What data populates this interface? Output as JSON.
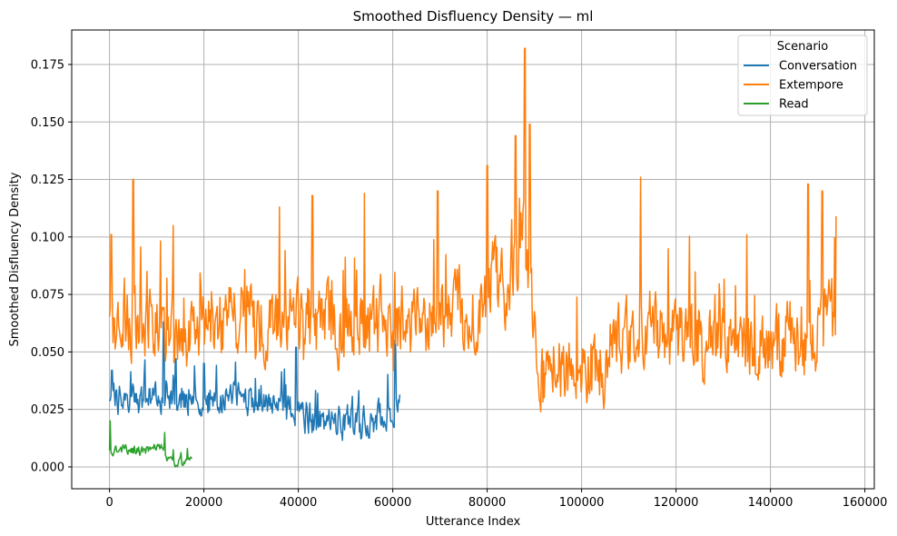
{
  "chart_data": {
    "type": "line",
    "title": "Smoothed Disfluency Density — ml",
    "xlabel": "Utterance Index",
    "ylabel": "Smoothed Disfluency Density",
    "xlim": [
      -8000,
      162000
    ],
    "ylim": [
      -0.0095,
      0.19
    ],
    "xticks": [
      0,
      20000,
      40000,
      60000,
      80000,
      100000,
      120000,
      140000,
      160000
    ],
    "xtick_labels": [
      "0",
      "20000",
      "40000",
      "60000",
      "80000",
      "100000",
      "120000",
      "140000",
      "160000"
    ],
    "yticks": [
      0.0,
      0.025,
      0.05,
      0.075,
      0.1,
      0.125,
      0.15,
      0.175
    ],
    "ytick_labels": [
      "0.000",
      "0.025",
      "0.050",
      "0.075",
      "0.100",
      "0.125",
      "0.150",
      "0.175"
    ],
    "grid": true,
    "legend": {
      "title": "Scenario",
      "position": "top-right"
    },
    "series": [
      {
        "name": "Conversation",
        "color": "#1f77b4",
        "x_range": [
          0,
          61500
        ],
        "anchors": [
          [
            0,
            0.03
          ],
          [
            2000,
            0.03
          ],
          [
            5000,
            0.029
          ],
          [
            10000,
            0.029
          ],
          [
            12000,
            0.033
          ],
          [
            15000,
            0.03
          ],
          [
            20000,
            0.028
          ],
          [
            25000,
            0.031
          ],
          [
            30000,
            0.029
          ],
          [
            33000,
            0.031
          ],
          [
            37000,
            0.027
          ],
          [
            40000,
            0.022
          ],
          [
            45000,
            0.02
          ],
          [
            50000,
            0.019
          ],
          [
            55000,
            0.021
          ],
          [
            58000,
            0.022
          ],
          [
            61500,
            0.027
          ]
        ],
        "amplitude": 0.007,
        "spikes": [
          [
            500,
            0.042
          ],
          [
            11500,
            0.063
          ],
          [
            14000,
            0.047
          ],
          [
            20000,
            0.045
          ],
          [
            39500,
            0.052
          ],
          [
            60500,
            0.055
          ]
        ],
        "min": 0.01,
        "max": 0.063
      },
      {
        "name": "Extempore",
        "color": "#ff7f0e",
        "x_range": [
          0,
          154000
        ],
        "anchors": [
          [
            0,
            0.065
          ],
          [
            5000,
            0.065
          ],
          [
            10000,
            0.062
          ],
          [
            15000,
            0.06
          ],
          [
            20000,
            0.062
          ],
          [
            25000,
            0.064
          ],
          [
            30000,
            0.063
          ],
          [
            35000,
            0.062
          ],
          [
            40000,
            0.063
          ],
          [
            45000,
            0.062
          ],
          [
            50000,
            0.063
          ],
          [
            55000,
            0.062
          ],
          [
            60000,
            0.062
          ],
          [
            65000,
            0.064
          ],
          [
            70000,
            0.066
          ],
          [
            75000,
            0.066
          ],
          [
            79000,
            0.07
          ],
          [
            81000,
            0.083
          ],
          [
            84000,
            0.078
          ],
          [
            86000,
            0.09
          ],
          [
            88000,
            0.1
          ],
          [
            89000,
            0.085
          ],
          [
            90000,
            0.055
          ],
          [
            91000,
            0.04
          ],
          [
            95000,
            0.045
          ],
          [
            100000,
            0.04
          ],
          [
            105000,
            0.045
          ],
          [
            110000,
            0.055
          ],
          [
            115000,
            0.06
          ],
          [
            120000,
            0.058
          ],
          [
            125000,
            0.055
          ],
          [
            130000,
            0.05
          ],
          [
            135000,
            0.055
          ],
          [
            140000,
            0.05
          ],
          [
            145000,
            0.057
          ],
          [
            150000,
            0.058
          ],
          [
            154000,
            0.068
          ]
        ],
        "amplitude": 0.016,
        "spikes": [
          [
            400,
            0.101
          ],
          [
            5000,
            0.125
          ],
          [
            13500,
            0.105
          ],
          [
            36000,
            0.113
          ],
          [
            43000,
            0.118
          ],
          [
            54000,
            0.119
          ],
          [
            69500,
            0.12
          ],
          [
            80000,
            0.131
          ],
          [
            86000,
            0.144
          ],
          [
            88000,
            0.182
          ],
          [
            89000,
            0.149
          ],
          [
            112500,
            0.126
          ],
          [
            135000,
            0.101
          ],
          [
            148000,
            0.123
          ],
          [
            151000,
            0.12
          ],
          [
            154000,
            0.109
          ]
        ],
        "min": 0.014,
        "max": 0.182
      },
      {
        "name": "Read",
        "color": "#2ca02c",
        "x_range": [
          0,
          17500
        ],
        "anchors": [
          [
            0,
            0.007
          ],
          [
            3000,
            0.008
          ],
          [
            6000,
            0.007
          ],
          [
            9000,
            0.008
          ],
          [
            11500,
            0.009
          ],
          [
            12000,
            0.003
          ],
          [
            14000,
            0.001
          ],
          [
            17500,
            0.005
          ]
        ],
        "amplitude": 0.002,
        "spikes": [
          [
            150,
            0.02
          ],
          [
            11700,
            0.015
          ],
          [
            16500,
            0.008
          ]
        ],
        "min": 0.0,
        "max": 0.02
      }
    ]
  }
}
